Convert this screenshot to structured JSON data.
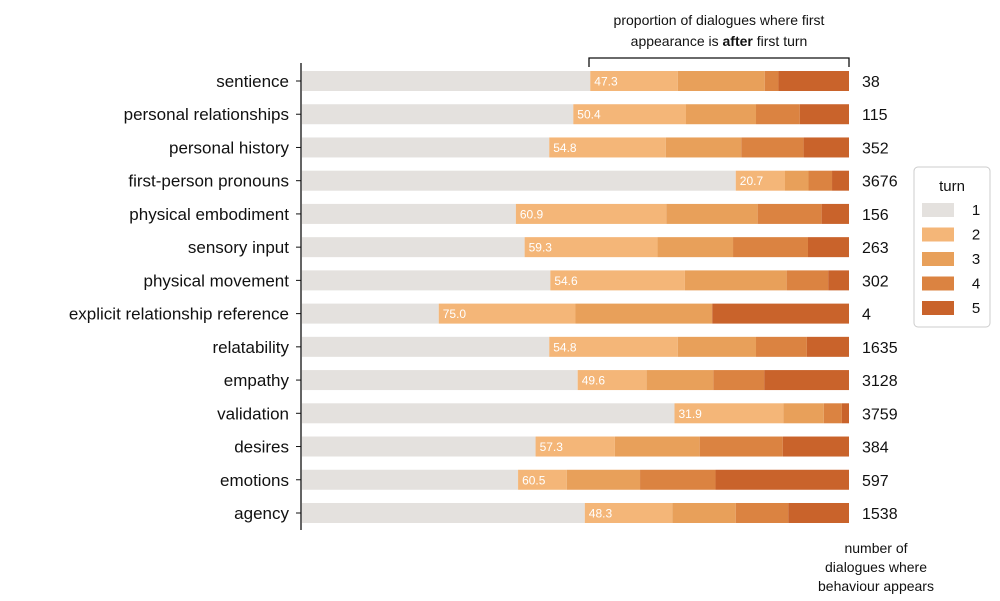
{
  "chart_data": {
    "type": "bar",
    "orientation": "horizontal",
    "stacked": true,
    "categories": [
      "sentience",
      "personal relationships",
      "personal history",
      "first-person pronouns",
      "physical embodiment",
      "sensory input",
      "physical movement",
      "explicit relationship reference",
      "relatability",
      "empathy",
      "validation",
      "desires",
      "emotions",
      "agency"
    ],
    "series": [
      {
        "name": "1",
        "color": "#e4e1de",
        "values": [
          52.7,
          49.6,
          45.2,
          79.3,
          39.1,
          40.7,
          45.4,
          25.0,
          45.2,
          50.4,
          68.1,
          42.7,
          39.5,
          51.7
        ]
      },
      {
        "name": "2",
        "color": "#f4b678",
        "values": [
          16.0,
          20.6,
          21.3,
          9.0,
          27.5,
          24.3,
          24.6,
          25.0,
          23.5,
          12.6,
          19.9,
          14.5,
          8.9,
          16.0
        ]
      },
      {
        "name": "3",
        "color": "#e8a05a",
        "values": [
          15.9,
          12.8,
          13.8,
          4.3,
          16.7,
          13.8,
          18.6,
          25.0,
          14.3,
          12.2,
          7.4,
          15.5,
          13.4,
          11.6
        ]
      },
      {
        "name": "4",
        "color": "#db8341",
        "values": [
          2.5,
          8.0,
          11.4,
          4.3,
          11.7,
          13.7,
          7.6,
          0.0,
          9.3,
          9.3,
          3.3,
          15.2,
          13.8,
          9.6
        ]
      },
      {
        "name": "5",
        "color": "#c9632b",
        "values": [
          12.9,
          9.0,
          8.3,
          3.1,
          5.0,
          7.5,
          3.8,
          25.0,
          7.7,
          15.5,
          1.3,
          12.1,
          24.4,
          11.1
        ]
      }
    ],
    "after_first_turn_pct_labels": [
      "47.3",
      "50.4",
      "54.8",
      "20.7",
      "60.9",
      "59.3",
      "54.6",
      "75.0",
      "54.8",
      "49.6",
      "31.9",
      "57.3",
      "60.5",
      "48.3"
    ],
    "dialogue_counts": [
      "38",
      "115",
      "352",
      "3676",
      "156",
      "263",
      "302",
      "4",
      "1635",
      "3128",
      "3759",
      "384",
      "597",
      "1538"
    ],
    "xlim": [
      0,
      100
    ],
    "top_annotation": {
      "line1": "proportion of dialogues where first",
      "line2_prefix": "appearance is ",
      "line2_bold": "after",
      "line2_suffix": " first turn"
    },
    "bottom_annotation": [
      "number of",
      "dialogues where",
      "behaviour appears"
    ],
    "legend": {
      "title": "turn",
      "placement": "right",
      "entries": [
        "1",
        "2",
        "3",
        "4",
        "5"
      ]
    }
  }
}
